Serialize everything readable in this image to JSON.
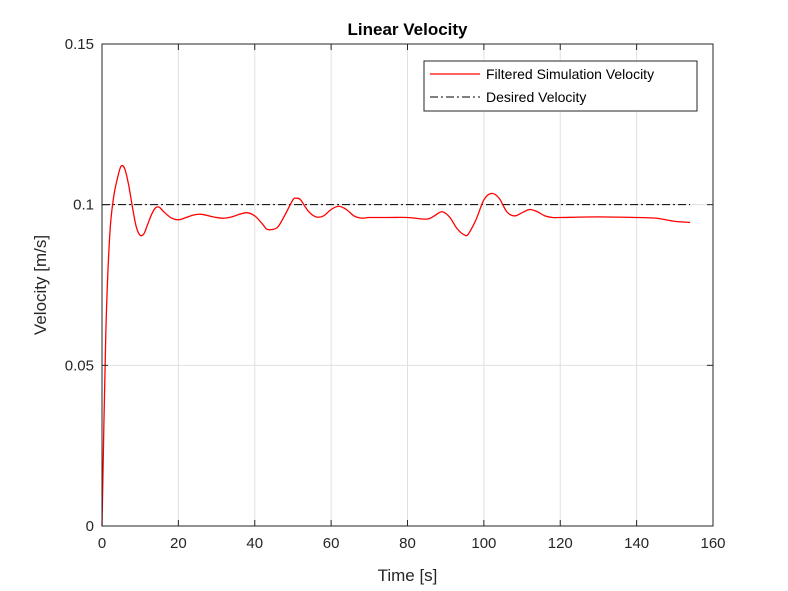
{
  "chart_data": {
    "type": "line",
    "title": "Linear Velocity",
    "xlabel": "Time [s]",
    "ylabel": "Velocity [m/s]",
    "xlim": [
      0,
      160
    ],
    "ylim": [
      0,
      0.15
    ],
    "xticks": [
      0,
      20,
      40,
      60,
      80,
      100,
      120,
      140,
      160
    ],
    "xtick_labels": [
      "0",
      "20",
      "40",
      "60",
      "80",
      "100",
      "120",
      "140",
      "160"
    ],
    "yticks": [
      0,
      0.05,
      0.1,
      0.15
    ],
    "ytick_labels": [
      "0",
      "0.05",
      "0.1",
      "0.15"
    ],
    "grid": true,
    "legend_position": "top-right",
    "series": [
      {
        "name": "Filtered Simulation Velocity",
        "color": "#ff0000",
        "style": "solid",
        "x": [
          0,
          1,
          2,
          3,
          4,
          5,
          6,
          7,
          8,
          9,
          10,
          11,
          12,
          13,
          14,
          15,
          16,
          18,
          20,
          22,
          24,
          26,
          28,
          30,
          32,
          34,
          36,
          38,
          40,
          42,
          43,
          44,
          46,
          48,
          50,
          51,
          52,
          54,
          56,
          58,
          60,
          62,
          64,
          66,
          68,
          70,
          75,
          80,
          85,
          87,
          89,
          91,
          93,
          95,
          96,
          98,
          100,
          102,
          104,
          106,
          108,
          110,
          112,
          114,
          116,
          118,
          120,
          130,
          140,
          145,
          150,
          154
        ],
        "y": [
          0,
          0.06,
          0.09,
          0.102,
          0.108,
          0.112,
          0.111,
          0.106,
          0.099,
          0.093,
          0.0905,
          0.091,
          0.094,
          0.097,
          0.099,
          0.0992,
          0.098,
          0.096,
          0.0953,
          0.096,
          0.0968,
          0.097,
          0.0965,
          0.096,
          0.0958,
          0.0962,
          0.097,
          0.0975,
          0.0965,
          0.094,
          0.0925,
          0.0922,
          0.093,
          0.097,
          0.1015,
          0.102,
          0.1015,
          0.098,
          0.0962,
          0.0965,
          0.0985,
          0.0995,
          0.0985,
          0.0965,
          0.0958,
          0.096,
          0.096,
          0.096,
          0.0955,
          0.0965,
          0.0978,
          0.0962,
          0.0925,
          0.0905,
          0.091,
          0.0955,
          0.1015,
          0.1035,
          0.102,
          0.0978,
          0.0965,
          0.0975,
          0.0985,
          0.0978,
          0.0965,
          0.096,
          0.096,
          0.0962,
          0.096,
          0.0958,
          0.0948,
          0.0945
        ]
      },
      {
        "name": "Desired Velocity",
        "color": "#000000",
        "style": "dashdot",
        "x": [
          0,
          154
        ],
        "y": [
          0.1,
          0.1
        ]
      }
    ]
  }
}
